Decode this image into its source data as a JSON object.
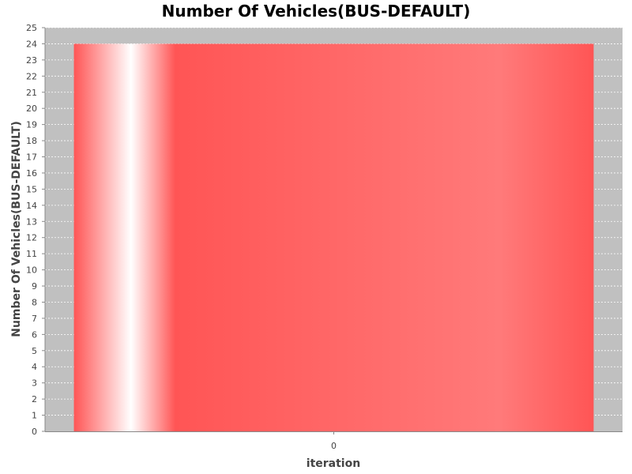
{
  "chart_data": {
    "type": "bar",
    "title": "Number Of Vehicles(BUS-DEFAULT)",
    "xlabel": "iteration",
    "ylabel": "Number Of Vehicles(BUS-DEFAULT)",
    "categories": [
      "0"
    ],
    "values": [
      24
    ],
    "ylim": [
      0,
      25
    ],
    "y_tick_step": 1,
    "grid": true,
    "legend": "none",
    "colors": {
      "plot_background": "#c0c0c0",
      "gridline": "#ffffff",
      "bar": "#ff5555",
      "bar_highlight": "#ffffff"
    }
  }
}
